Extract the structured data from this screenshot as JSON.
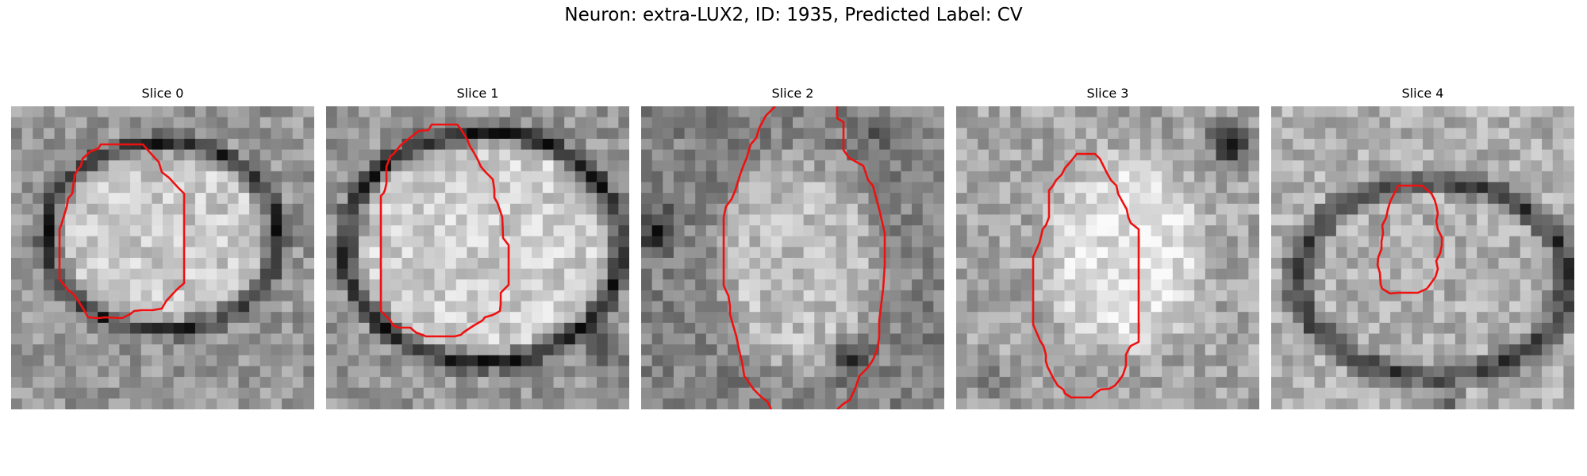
{
  "figure": {
    "title": "Neuron: extra-LUX2, ID: 1935, Predicted Label: CV",
    "outline_color": "#ee1111"
  },
  "panels": [
    {
      "title": "Slice 0"
    },
    {
      "title": "Slice 1"
    },
    {
      "title": "Slice 2"
    },
    {
      "title": "Slice 3"
    },
    {
      "title": "Slice 4"
    }
  ]
}
